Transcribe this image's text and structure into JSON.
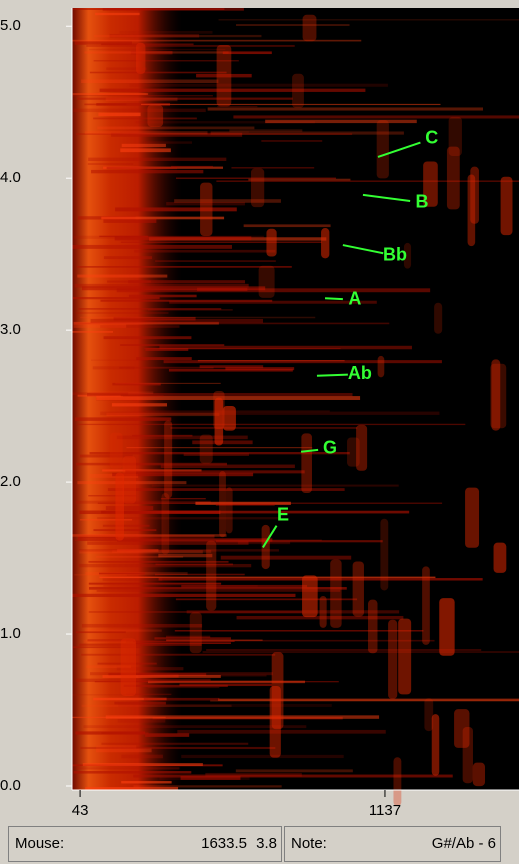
{
  "chart_data": {
    "type": "spectrogram",
    "xlim": [
      14,
      1618
    ],
    "ylim": [
      0,
      5.12
    ],
    "xticks": [
      43,
      1137
    ],
    "yticks": [
      {
        "value": 0,
        "label": "0.0"
      },
      {
        "value": 1,
        "label": "1.0"
      },
      {
        "value": 2,
        "label": "2.0"
      },
      {
        "value": 3,
        "label": "3.0"
      },
      {
        "value": 4,
        "label": "4.0"
      },
      {
        "value": 5,
        "label": "5.0"
      }
    ],
    "annotation_color": "#33ff33",
    "annotations": [
      {
        "text": "C",
        "x": 1305,
        "y": 4.26,
        "point_x": 1112,
        "point_y": 4.14
      },
      {
        "text": "B",
        "x": 1270,
        "y": 3.84,
        "point_x": 1058,
        "point_y": 3.89
      },
      {
        "text": "Bb",
        "x": 1173,
        "y": 3.49,
        "point_x": 986,
        "point_y": 3.56
      },
      {
        "text": "A",
        "x": 1029,
        "y": 3.2,
        "point_x": 922,
        "point_y": 3.21
      },
      {
        "text": "Ab",
        "x": 1047,
        "y": 2.71,
        "point_x": 893,
        "point_y": 2.7
      },
      {
        "text": "G",
        "x": 940,
        "y": 2.22,
        "point_x": 836,
        "point_y": 2.2
      },
      {
        "text": "E",
        "x": 771,
        "y": 1.78,
        "point_x": 699,
        "point_y": 1.57
      }
    ]
  },
  "status_bar": {
    "mouse_label": "Mouse:",
    "mouse_x": "1633.5",
    "mouse_y": "3.8",
    "note_label": "Note:",
    "note_value": "G#/Ab - 6"
  }
}
